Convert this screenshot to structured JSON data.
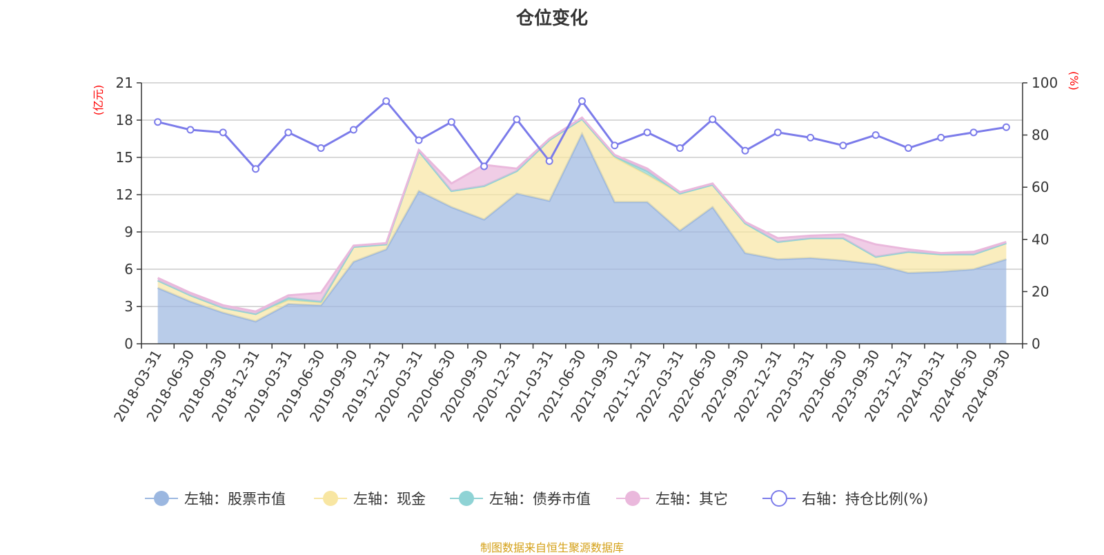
{
  "chart_data": {
    "type": "area",
    "title": "仓位变化",
    "left_axis_unit": "(亿元)",
    "right_axis_unit": "(%)",
    "left_ylim": [
      0,
      21
    ],
    "left_ticks": [
      0,
      3,
      6,
      9,
      12,
      15,
      18,
      21
    ],
    "right_ylim": [
      0,
      100
    ],
    "right_ticks": [
      0,
      20,
      40,
      60,
      80,
      100
    ],
    "categories": [
      "2018-03-31",
      "2018-06-30",
      "2018-09-30",
      "2018-12-31",
      "2019-03-31",
      "2019-06-30",
      "2019-09-30",
      "2019-12-31",
      "2020-03-31",
      "2020-06-30",
      "2020-09-30",
      "2020-12-31",
      "2021-03-31",
      "2021-06-30",
      "2021-09-30",
      "2021-12-31",
      "2022-03-31",
      "2022-06-30",
      "2022-09-30",
      "2022-12-31",
      "2023-03-31",
      "2023-06-30",
      "2023-09-30",
      "2023-12-31",
      "2024-03-31",
      "2024-06-30",
      "2024-09-30"
    ],
    "series": [
      {
        "name": "左轴：股票市值",
        "axis": "left",
        "color": "#9bb7e0",
        "values": [
          4.5,
          3.4,
          2.5,
          1.8,
          3.2,
          3.1,
          6.6,
          7.6,
          12.3,
          11.0,
          10.0,
          12.1,
          11.5,
          16.9,
          11.4,
          11.4,
          9.1,
          11.0,
          7.3,
          6.8,
          6.9,
          6.7,
          6.4,
          5.7,
          5.8,
          6.0,
          6.8
        ]
      },
      {
        "name": "左轴：现金",
        "axis": "left",
        "color": "#f8e6a2",
        "values": [
          0.6,
          0.5,
          0.4,
          0.6,
          0.3,
          0.2,
          1.2,
          0.4,
          3.2,
          1.3,
          2.7,
          1.8,
          4.9,
          1.2,
          3.6,
          2.2,
          3.0,
          1.8,
          2.4,
          1.4,
          1.6,
          1.8,
          0.6,
          1.7,
          1.4,
          1.2,
          1.3
        ]
      },
      {
        "name": "左轴：债券市值",
        "axis": "left",
        "color": "#8fd3d5",
        "values": [
          0.0,
          0.0,
          0.0,
          0.0,
          0.2,
          0.1,
          0.0,
          0.0,
          0.0,
          0.0,
          0.0,
          0.0,
          0.0,
          0.0,
          0.1,
          0.3,
          0.0,
          0.0,
          0.0,
          0.0,
          0.0,
          0.0,
          0.0,
          0.0,
          0.0,
          0.0,
          0.0
        ]
      },
      {
        "name": "左轴：其它",
        "axis": "left",
        "color": "#eab8dc",
        "values": [
          0.2,
          0.2,
          0.2,
          0.2,
          0.2,
          0.7,
          0.1,
          0.1,
          0.1,
          0.6,
          1.7,
          0.2,
          0.1,
          0.1,
          0.1,
          0.2,
          0.1,
          0.1,
          0.1,
          0.3,
          0.2,
          0.3,
          1.0,
          0.2,
          0.1,
          0.2,
          0.1
        ]
      },
      {
        "name": "右轴：持仓比例(%)",
        "axis": "right",
        "color": "#7b7bea",
        "values": [
          85,
          82,
          81,
          67,
          81,
          75,
          82,
          93,
          78,
          85,
          68,
          86,
          70,
          93,
          76,
          81,
          75,
          86,
          74,
          81,
          79,
          76,
          80,
          75,
          79,
          81,
          83
        ]
      }
    ],
    "source_note": "制图数据来自恒生聚源数据库"
  }
}
